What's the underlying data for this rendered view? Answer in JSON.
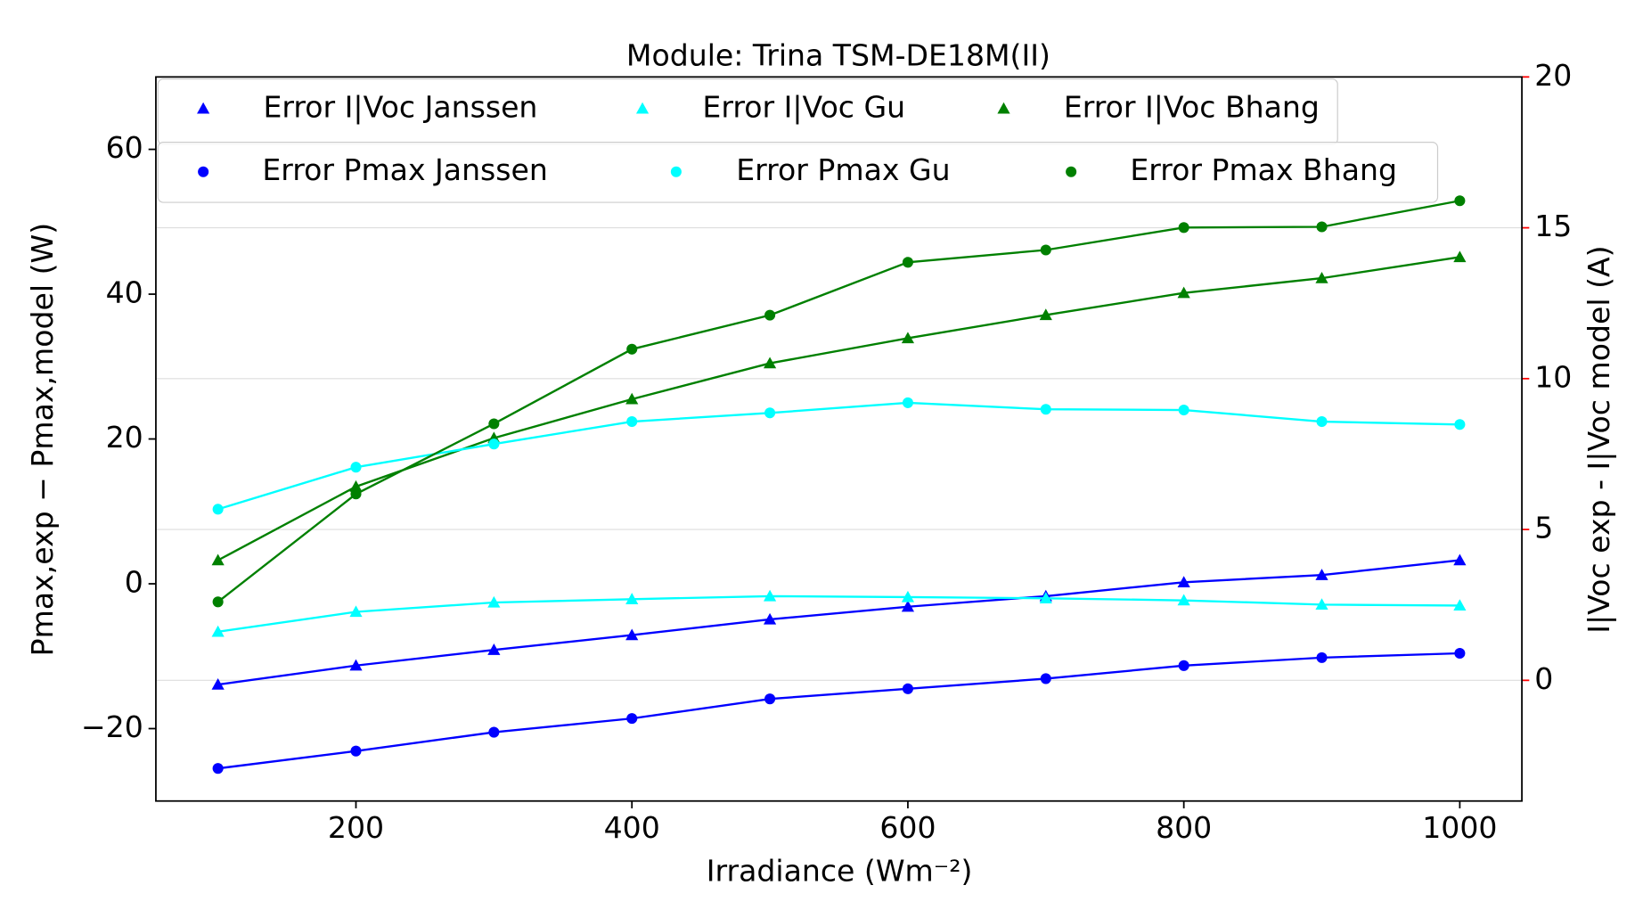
{
  "chart_data": {
    "type": "line",
    "title": "Module: Trina TSM-DE18M(II)",
    "x_label": "Irradiance (Wm⁻²)",
    "y_label": "Pmax,exp − Pmax,model (W)",
    "y2_label": "I|Voc exp - I|Voc model (A)",
    "y2_color": "red",
    "x": [
      100,
      200,
      300,
      400,
      500,
      600,
      700,
      800,
      900,
      1000
    ],
    "xlim": [
      55,
      1045
    ],
    "xticks": [
      200,
      400,
      600,
      800,
      1000
    ],
    "ylim": [
      -30,
      70
    ],
    "yticks": [
      {
        "value": -20,
        "label": "−20"
      },
      0,
      20,
      40,
      60
    ],
    "y2lim": [
      -4,
      20
    ],
    "y2ticks": [
      0,
      5,
      10,
      15,
      20
    ],
    "grid": "y2",
    "legend": "upper left",
    "series": [
      {
        "name": "Error I|Voc Janssen",
        "color": "#0000ff",
        "marker": "triangle",
        "axis": "y2",
        "values": [
          -0.14,
          0.49,
          1.01,
          1.5,
          2.02,
          2.44,
          2.79,
          3.25,
          3.49,
          3.98
        ]
      },
      {
        "name": "Error I|Voc Gu",
        "color": "#00ffff",
        "marker": "triangle",
        "axis": "y2",
        "values": [
          1.61,
          2.27,
          2.58,
          2.69,
          2.79,
          2.76,
          2.72,
          2.65,
          2.51,
          2.48
        ]
      },
      {
        "name": "Error I|Voc Bhang",
        "color": "#008000",
        "marker": "triangle",
        "axis": "y2",
        "values": [
          3.98,
          6.42,
          8.03,
          9.32,
          10.51,
          11.34,
          12.11,
          12.84,
          13.33,
          14.03
        ]
      },
      {
        "name": "Error Pmax Janssen",
        "color": "#0000ff",
        "marker": "circle",
        "values": [
          -25.5,
          -23.1,
          -20.5,
          -18.6,
          -15.9,
          -14.5,
          -13.1,
          -11.3,
          -10.2,
          -9.6
        ]
      },
      {
        "name": "Error Pmax Gu",
        "color": "#00ffff",
        "marker": "circle",
        "values": [
          10.3,
          16.1,
          19.3,
          22.4,
          23.6,
          25.0,
          24.1,
          24.0,
          22.4,
          22.0
        ]
      },
      {
        "name": "Error Pmax Bhang",
        "color": "#008000",
        "marker": "circle",
        "values": [
          -2.5,
          12.4,
          22.1,
          32.4,
          37.1,
          44.4,
          46.1,
          49.2,
          49.3,
          52.9
        ]
      }
    ]
  }
}
